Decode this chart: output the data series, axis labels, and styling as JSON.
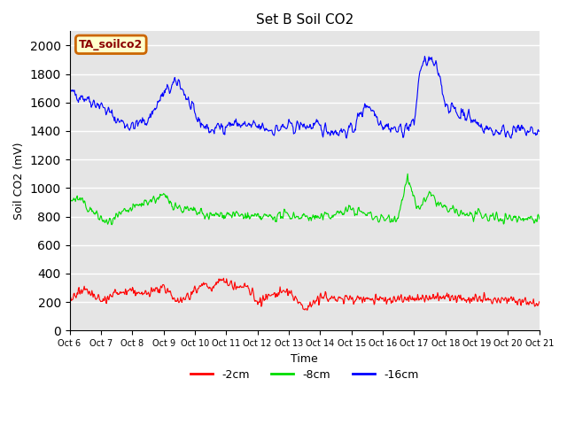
{
  "title": "Set B Soil CO2",
  "xlabel": "Time",
  "ylabel": "Soil CO2 (mV)",
  "ylim": [
    0,
    2100
  ],
  "yticks": [
    0,
    200,
    400,
    600,
    800,
    1000,
    1200,
    1400,
    1600,
    1800,
    2000
  ],
  "background_color": "#ffffff",
  "plot_bg_color": "#e5e5e5",
  "grid_color": "#ffffff",
  "annotation_label": "TA_soilco2",
  "annotation_bg": "#ffffcc",
  "annotation_border": "#cc6600",
  "legend_entries": [
    "-2cm",
    "-8cm",
    "-16cm"
  ],
  "line_colors": [
    "#ff0000",
    "#00dd00",
    "#0000ff"
  ],
  "x_tick_labels": [
    "Oct 6",
    "Oct 7",
    "Oct 8",
    "Oct 9",
    "Oct 10",
    "Oct 11",
    "Oct 12",
    "Oct 13",
    "Oct 14",
    "Oct 15",
    "Oct 16",
    "Oct 17",
    "Oct 18",
    "Oct 19",
    "Oct 20",
    "Oct 21"
  ],
  "n_points": 800,
  "seed": 42
}
